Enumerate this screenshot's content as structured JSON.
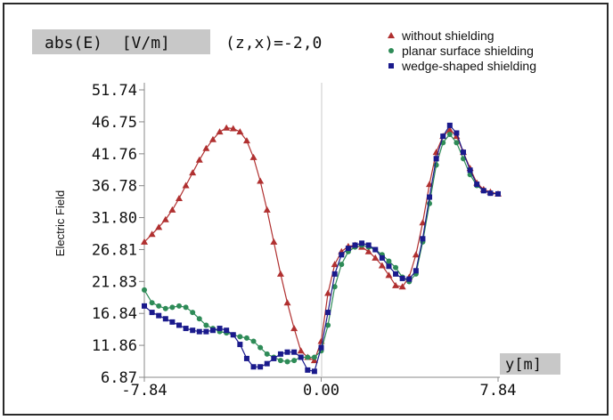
{
  "header": {
    "quantity_label": "abs(E)  [V/m]",
    "position_label": "(z,x)=-2,0"
  },
  "colors": {
    "without_shielding": "#b03030",
    "planar_surface_shielding": "#2e8b57",
    "wedge_shaped_shielding": "#1a1a8c",
    "label_box": "#c8c8c8"
  },
  "chart_data": {
    "type": "line",
    "ylabel": "Electric Field",
    "xlabel": "y[m]",
    "xlim": [
      -7.84,
      7.84
    ],
    "ylim": [
      6.87,
      51.74
    ],
    "x_ticks": [
      "-7.84",
      "0.00",
      "7.84"
    ],
    "y_ticks": [
      "6.87",
      "11.86",
      "16.84",
      "21.83",
      "26.81",
      "31.80",
      "36.78",
      "41.76",
      "46.75",
      "51.74"
    ],
    "grid": false,
    "legend_position": "top-right",
    "series": [
      {
        "name": "without shielding",
        "marker": "triangle",
        "x": [
          -7.84,
          -7.5,
          -7.2,
          -6.9,
          -6.6,
          -6.3,
          -6.0,
          -5.7,
          -5.4,
          -5.1,
          -4.8,
          -4.5,
          -4.2,
          -3.9,
          -3.6,
          -3.3,
          -3.0,
          -2.7,
          -2.4,
          -2.1,
          -1.8,
          -1.5,
          -1.2,
          -0.9,
          -0.6,
          -0.3,
          0.0,
          0.3,
          0.6,
          0.9,
          1.2,
          1.5,
          1.8,
          2.1,
          2.4,
          2.7,
          3.0,
          3.3,
          3.6,
          3.9,
          4.2,
          4.5,
          4.8,
          5.1,
          5.4,
          5.7,
          6.0,
          6.3,
          6.6,
          6.9,
          7.2,
          7.5,
          7.84
        ],
        "y": [
          28.0,
          29.2,
          30.3,
          31.5,
          33.0,
          34.8,
          36.8,
          38.8,
          40.8,
          42.6,
          44.0,
          45.2,
          45.8,
          45.7,
          45.2,
          43.8,
          41.2,
          37.5,
          33.0,
          28.0,
          23.0,
          18.5,
          14.5,
          11.0,
          10.0,
          9.5,
          12.5,
          20.0,
          24.5,
          26.5,
          27.3,
          27.5,
          27.2,
          26.5,
          25.5,
          24.3,
          22.8,
          21.2,
          21.0,
          22.5,
          26.0,
          31.0,
          37.0,
          42.0,
          44.5,
          45.5,
          44.5,
          42.0,
          39.5,
          37.2,
          36.2,
          35.8,
          35.5
        ]
      },
      {
        "name": "planar surface shielding",
        "marker": "circle",
        "x": [
          -7.84,
          -7.5,
          -7.2,
          -6.9,
          -6.6,
          -6.3,
          -6.0,
          -5.7,
          -5.4,
          -5.1,
          -4.8,
          -4.5,
          -4.2,
          -3.9,
          -3.6,
          -3.3,
          -3.0,
          -2.7,
          -2.4,
          -2.1,
          -1.8,
          -1.5,
          -1.2,
          -0.9,
          -0.6,
          -0.3,
          0.0,
          0.3,
          0.6,
          0.9,
          1.2,
          1.5,
          1.8,
          2.1,
          2.4,
          2.7,
          3.0,
          3.3,
          3.6,
          3.9,
          4.2,
          4.5,
          4.8,
          5.1,
          5.4,
          5.7,
          6.0,
          6.3,
          6.6,
          6.9,
          7.2,
          7.5,
          7.84
        ],
        "y": [
          20.5,
          18.5,
          18.0,
          17.6,
          17.8,
          18.0,
          17.8,
          17.0,
          16.0,
          15.0,
          14.5,
          14.0,
          13.8,
          13.5,
          13.2,
          13.0,
          12.5,
          11.5,
          10.5,
          10.0,
          9.5,
          9.3,
          9.5,
          10.0,
          10.0,
          10.0,
          11.0,
          15.0,
          21.0,
          24.5,
          26.5,
          27.2,
          27.5,
          27.2,
          26.8,
          26.0,
          25.0,
          24.0,
          22.5,
          21.8,
          23.0,
          28.0,
          34.0,
          40.0,
          43.5,
          44.8,
          43.5,
          41.0,
          38.5,
          36.8,
          36.0,
          35.6,
          35.5
        ]
      },
      {
        "name": "wedge-shaped shielding",
        "marker": "square",
        "x": [
          -7.84,
          -7.5,
          -7.2,
          -6.9,
          -6.6,
          -6.3,
          -6.0,
          -5.7,
          -5.4,
          -5.1,
          -4.8,
          -4.5,
          -4.2,
          -3.9,
          -3.6,
          -3.3,
          -3.0,
          -2.7,
          -2.4,
          -2.1,
          -1.8,
          -1.5,
          -1.2,
          -0.9,
          -0.6,
          -0.3,
          0.0,
          0.3,
          0.6,
          0.9,
          1.2,
          1.5,
          1.8,
          2.1,
          2.4,
          2.7,
          3.0,
          3.3,
          3.6,
          3.9,
          4.2,
          4.5,
          4.8,
          5.1,
          5.4,
          5.7,
          6.0,
          6.3,
          6.6,
          6.9,
          7.2,
          7.5,
          7.84
        ],
        "y": [
          18.0,
          17.0,
          16.5,
          16.0,
          15.5,
          15.0,
          14.5,
          14.2,
          14.0,
          14.0,
          14.2,
          14.5,
          14.2,
          13.5,
          12.0,
          9.8,
          8.5,
          8.5,
          9.0,
          9.8,
          10.5,
          10.8,
          10.8,
          10.0,
          8.0,
          7.8,
          11.5,
          17.0,
          23.0,
          26.0,
          27.0,
          27.5,
          27.8,
          27.5,
          26.8,
          25.5,
          24.2,
          23.0,
          22.3,
          22.2,
          23.5,
          28.5,
          35.0,
          41.0,
          44.5,
          46.2,
          45.0,
          42.0,
          39.2,
          37.0,
          36.0,
          35.6,
          35.5
        ]
      }
    ]
  }
}
